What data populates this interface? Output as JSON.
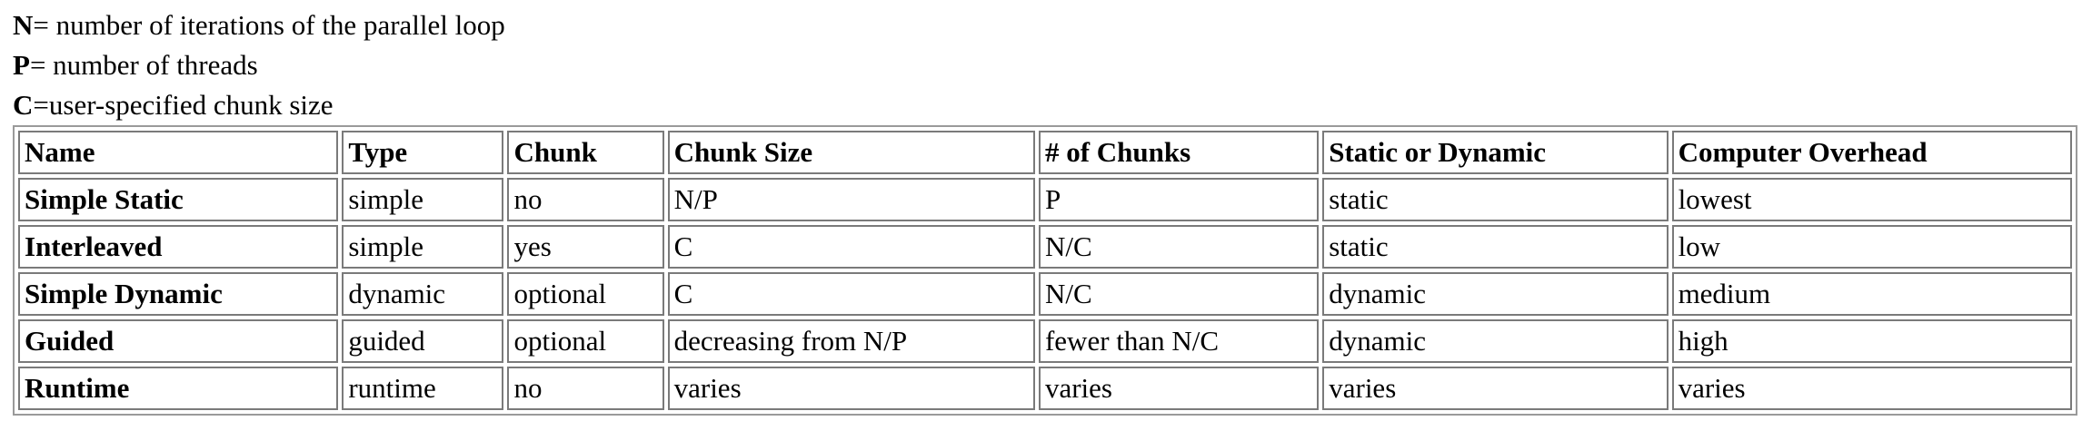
{
  "definitions": [
    {
      "symbol": "N",
      "text": "= number of iterations of the parallel loop"
    },
    {
      "symbol": "P",
      "text": "= number of threads"
    },
    {
      "symbol": "C",
      "text": "=user-specified chunk size"
    }
  ],
  "table": {
    "headers": [
      "Name",
      "Type",
      "Chunk",
      "Chunk Size",
      "# of Chunks",
      "Static or Dynamic",
      "Computer Overhead"
    ],
    "rows": [
      [
        "Simple Static",
        "simple",
        "no",
        "N/P",
        "P",
        "static",
        "lowest"
      ],
      [
        "Interleaved",
        "simple",
        "yes",
        "C",
        "N/C",
        "static",
        "low"
      ],
      [
        "Simple Dynamic",
        "dynamic",
        "optional",
        "C",
        "N/C",
        "dynamic",
        "medium"
      ],
      [
        "Guided",
        "guided",
        "optional",
        "decreasing from N/P",
        "fewer than N/C",
        "dynamic",
        "high"
      ],
      [
        "Runtime",
        "runtime",
        "no",
        "varies",
        "varies",
        "varies",
        "varies"
      ]
    ]
  }
}
